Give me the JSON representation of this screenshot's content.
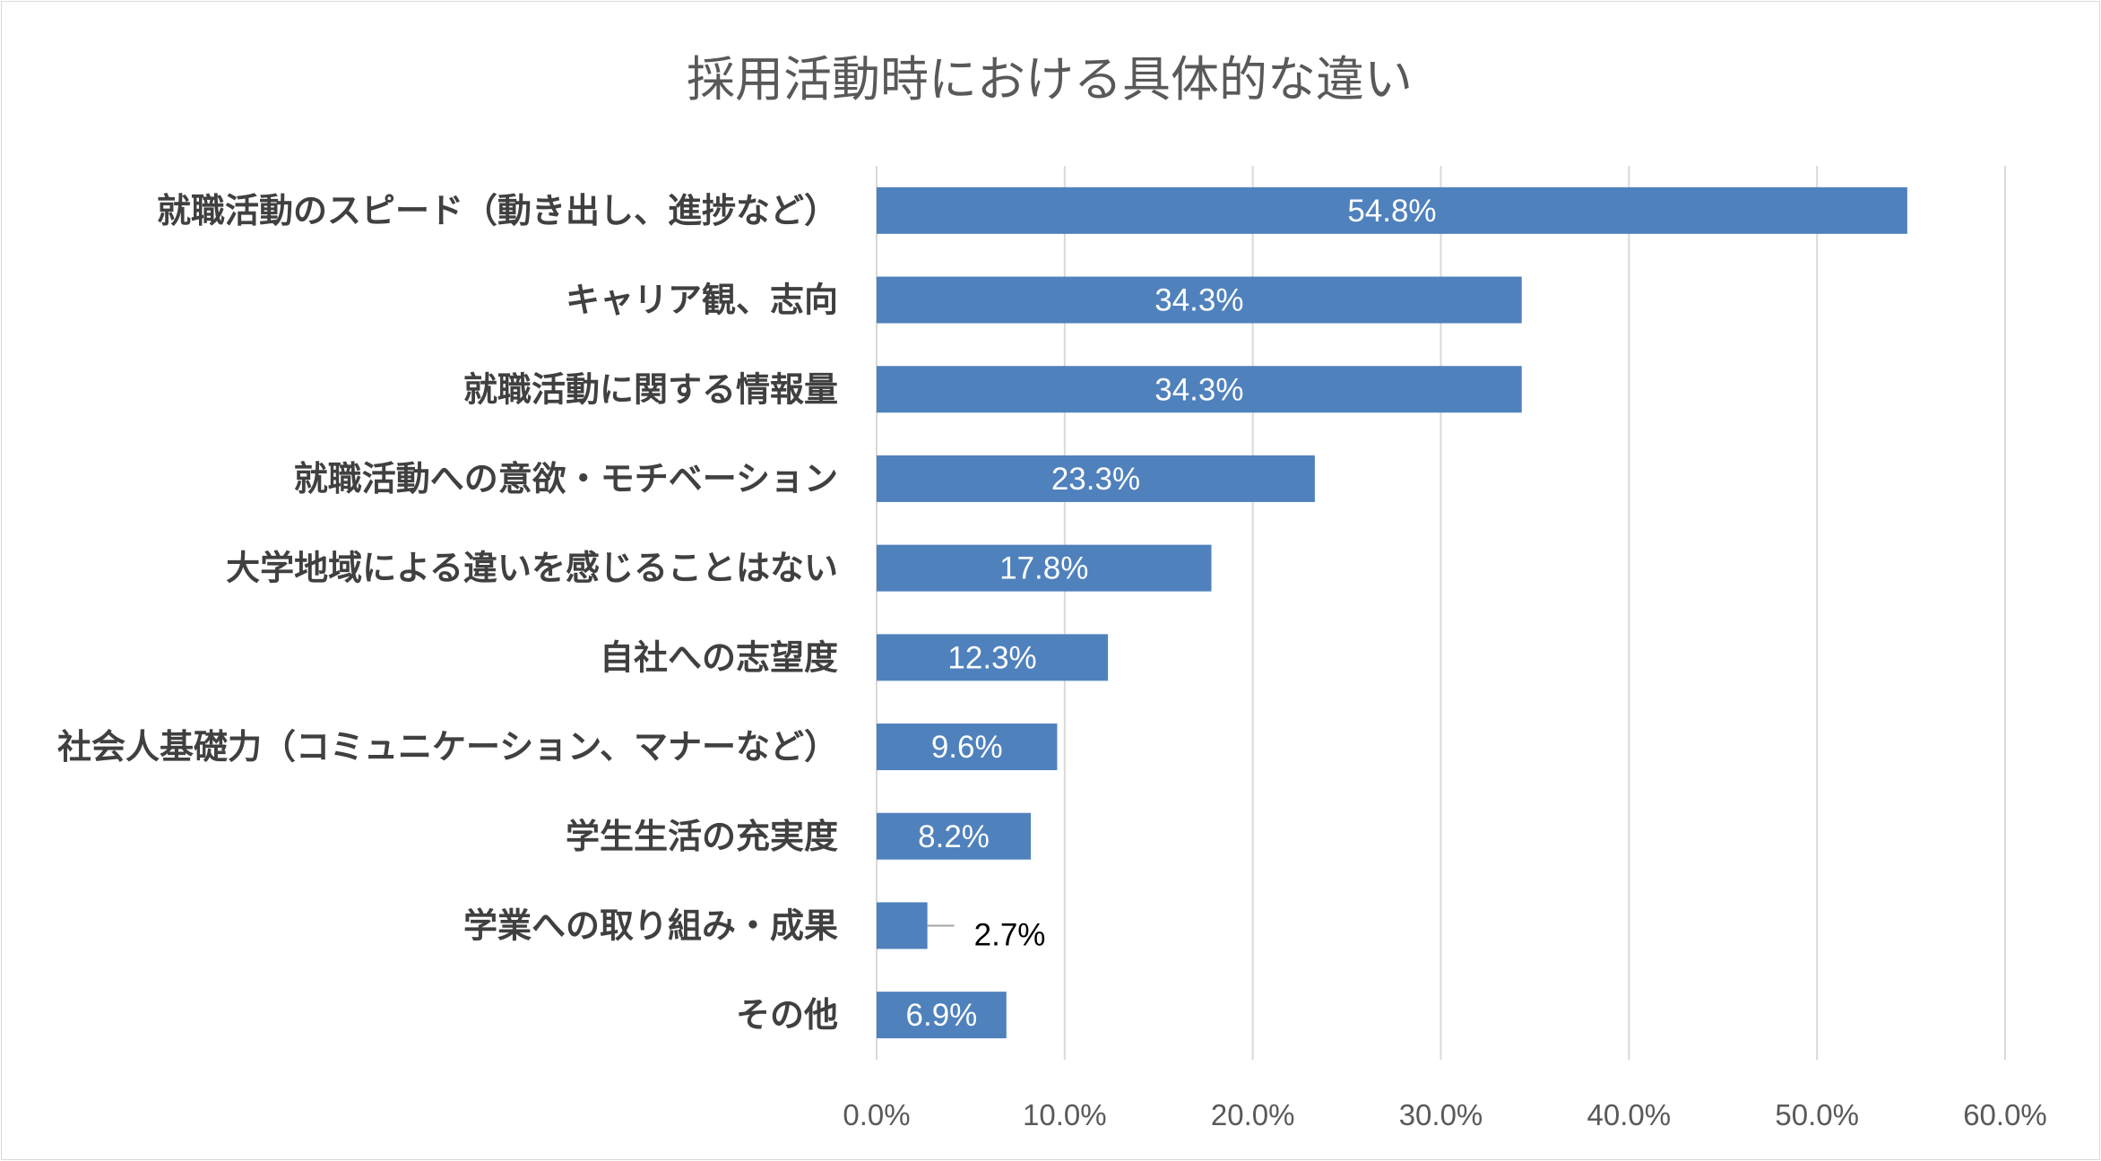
{
  "chart_data": {
    "type": "bar",
    "orientation": "horizontal",
    "title": "採用活動時における具体的な違い",
    "categories": [
      "就職活動のスピード（動き出し、進捗など）",
      "キャリア観、志向",
      "就職活動に関する情報量",
      "就職活動への意欲・モチベーション",
      "大学地域による違いを感じることはない",
      "自社への志望度",
      "社会人基礎力（コミュニケーション、マナーなど）",
      "学生生活の充実度",
      "学業への取り組み・成果",
      "その他"
    ],
    "values": [
      54.8,
      34.3,
      34.3,
      23.3,
      17.8,
      12.3,
      9.6,
      8.2,
      2.7,
      6.9
    ],
    "data_labels": [
      "54.8%",
      "34.3%",
      "34.3%",
      "23.3%",
      "17.8%",
      "12.3%",
      "9.6%",
      "8.2%",
      "2.7%",
      "6.9%"
    ],
    "xlim": [
      0,
      60
    ],
    "x_ticks": [
      "0.0%",
      "10.0%",
      "20.0%",
      "30.0%",
      "40.0%",
      "50.0%",
      "60.0%"
    ],
    "xlabel": "",
    "ylabel": "",
    "grid": true,
    "legend": "none",
    "bar_color": "#4f81bd",
    "gridline_color": "#d9d9d9"
  }
}
